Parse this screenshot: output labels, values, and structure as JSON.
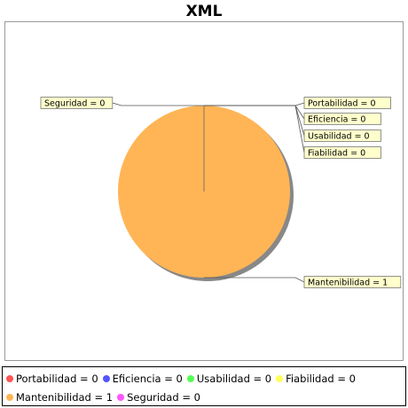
{
  "chart_data": {
    "type": "pie",
    "title": "XML",
    "slices": [
      {
        "label": "Portabilidad",
        "value": 0,
        "label_text": "Portabilidad = 0",
        "color": "#ff5555"
      },
      {
        "label": "Eficiencia",
        "value": 0,
        "label_text": "Eficiencia = 0",
        "color": "#5555ff"
      },
      {
        "label": "Usabilidad",
        "value": 0,
        "label_text": "Usabilidad = 0",
        "color": "#55ff55"
      },
      {
        "label": "Fiabilidad",
        "value": 0,
        "label_text": "Fiabilidad = 0",
        "color": "#ffff55"
      },
      {
        "label": "Mantenibilidad",
        "value": 1,
        "label_text": "Mantenibilidad = 1",
        "color": "#ffb555"
      },
      {
        "label": "Seguridad",
        "value": 0,
        "label_text": "Seguridad = 0",
        "color": "#ff55ff"
      }
    ],
    "legend_position": "bottom",
    "label_style": "callout"
  }
}
